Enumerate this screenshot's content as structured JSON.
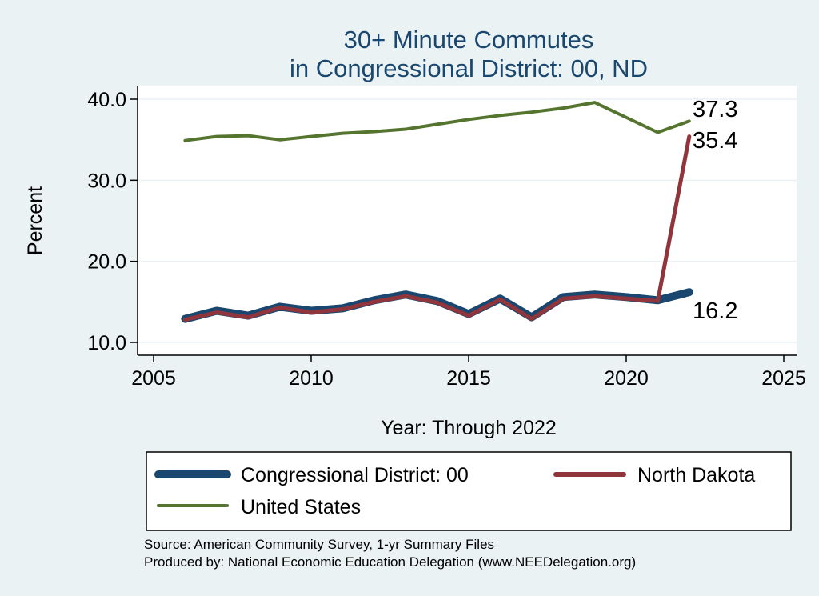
{
  "chart_data": {
    "type": "line",
    "title_lines": [
      "30+ Minute Commutes",
      "in Congressional District:  00, ND"
    ],
    "xlabel": "Year: Through 2022",
    "ylabel": "Percent",
    "xlim": [
      2005,
      2025
    ],
    "ylim": [
      10,
      40
    ],
    "x_ticks": [
      2005,
      2010,
      2015,
      2020,
      2025
    ],
    "y_ticks": [
      10,
      20,
      30,
      40
    ],
    "y_tick_labels": [
      "10.0",
      "20.0",
      "30.0",
      "40.0"
    ],
    "grid": true,
    "series": [
      {
        "name": "Congressional District:  00",
        "color": "#1a476f",
        "x": [
          2006,
          2007,
          2008,
          2009,
          2010,
          2011,
          2012,
          2013,
          2014,
          2015,
          2016,
          2017,
          2018,
          2019,
          2020,
          2021,
          2022
        ],
        "values": [
          12.9,
          13.9,
          13.3,
          14.4,
          13.9,
          14.2,
          15.2,
          15.9,
          15.1,
          13.5,
          15.4,
          13.1,
          15.6,
          15.9,
          15.6,
          15.2,
          16.2
        ],
        "end_label": "16.2"
      },
      {
        "name": "North Dakota",
        "color": "#90353b",
        "x": [
          2006,
          2007,
          2008,
          2009,
          2010,
          2011,
          2012,
          2013,
          2014,
          2015,
          2016,
          2017,
          2018,
          2019,
          2020,
          2021,
          2022
        ],
        "values": [
          12.8,
          13.7,
          13.1,
          14.3,
          13.7,
          14.1,
          15.0,
          15.7,
          14.9,
          13.3,
          15.3,
          12.9,
          15.4,
          15.7,
          15.4,
          15.1,
          35.4
        ],
        "end_label": "35.4"
      },
      {
        "name": "United States",
        "color": "#55752f",
        "x": [
          2006,
          2007,
          2008,
          2009,
          2010,
          2011,
          2012,
          2013,
          2014,
          2015,
          2016,
          2017,
          2018,
          2019,
          2021,
          2022
        ],
        "values": [
          34.9,
          35.4,
          35.5,
          35.0,
          35.4,
          35.8,
          36.0,
          36.3,
          36.9,
          37.5,
          38.0,
          38.4,
          38.9,
          39.6,
          35.9,
          37.3
        ],
        "end_label": "37.3"
      }
    ],
    "legend": {
      "placement": "bottom",
      "entries": [
        "Congressional District:  00",
        "North Dakota",
        "United States"
      ]
    }
  },
  "footer": {
    "source": "Source: American Community Survey, 1-yr Summary Files",
    "produced": "Produced by: National Economic Education Delegation (www.NEEDelegation.org)"
  }
}
